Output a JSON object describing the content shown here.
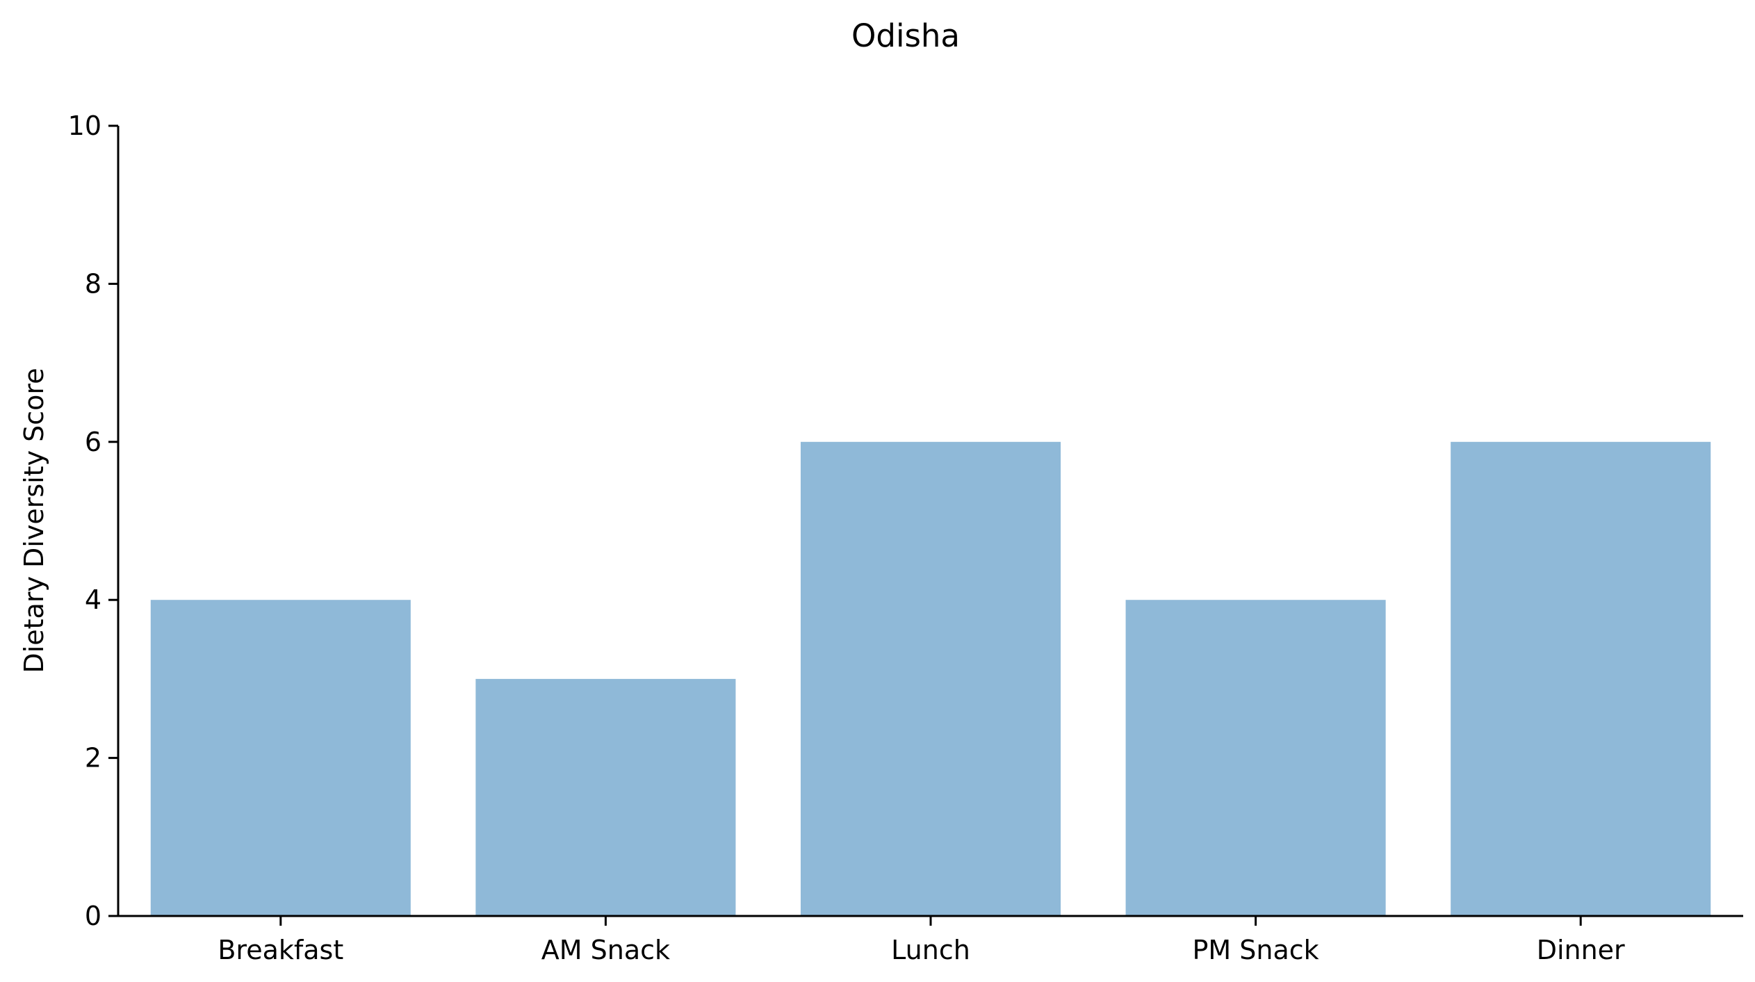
{
  "chart_data": {
    "type": "bar",
    "title": "Odisha",
    "xlabel": "",
    "ylabel": "Dietary Diversity Score",
    "categories": [
      "Breakfast",
      "AM Snack",
      "Lunch",
      "PM Snack",
      "Dinner"
    ],
    "values": [
      4,
      3,
      6,
      4,
      6
    ],
    "ylim": [
      0,
      10
    ],
    "yticks": [
      0,
      2,
      4,
      6,
      8,
      10
    ],
    "grid": false,
    "bar_color": "#8fb9d8",
    "spines": [
      "left",
      "bottom"
    ]
  }
}
